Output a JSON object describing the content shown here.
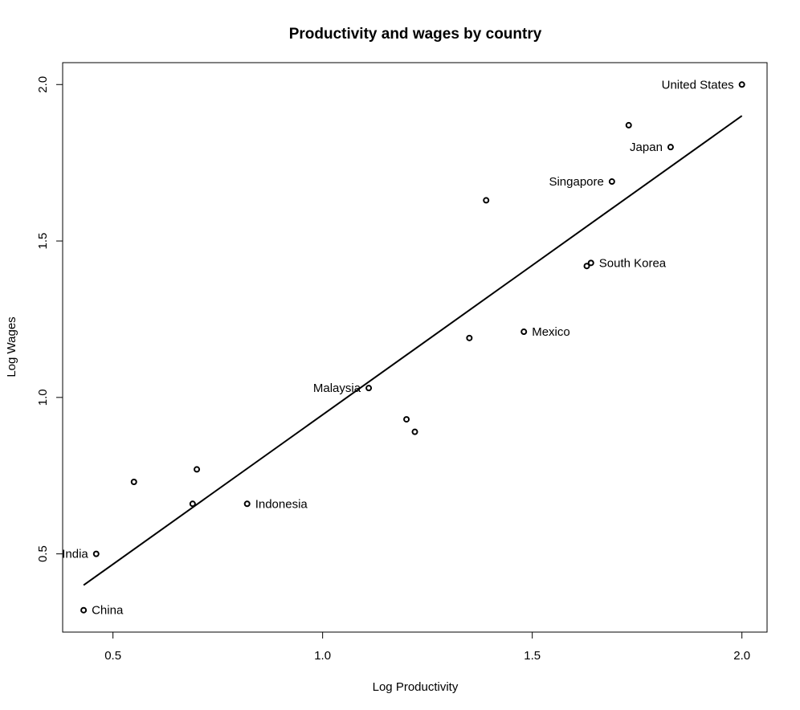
{
  "chart_data": {
    "type": "scatter",
    "title": "Productivity and wages by country",
    "xlabel": "Log Productivity",
    "ylabel": "Log Wages",
    "xlim": [
      0.38,
      2.06
    ],
    "ylim": [
      0.25,
      2.07
    ],
    "xticks": [
      "0.5",
      "1.0",
      "1.5",
      "2.0"
    ],
    "yticks": [
      "0.5",
      "1.0",
      "1.5",
      "2.0"
    ],
    "grid": false,
    "points": [
      {
        "x": 0.43,
        "y": 0.32,
        "label": "China",
        "label_side": "right"
      },
      {
        "x": 0.46,
        "y": 0.5,
        "label": "India",
        "label_side": "left"
      },
      {
        "x": 0.55,
        "y": 0.73,
        "label": "",
        "label_side": "right"
      },
      {
        "x": 0.69,
        "y": 0.66,
        "label": "",
        "label_side": "right"
      },
      {
        "x": 0.7,
        "y": 0.77,
        "label": "",
        "label_side": "right"
      },
      {
        "x": 0.82,
        "y": 0.66,
        "label": "Indonesia",
        "label_side": "right"
      },
      {
        "x": 1.11,
        "y": 1.03,
        "label": "Malaysia",
        "label_side": "left"
      },
      {
        "x": 1.2,
        "y": 0.93,
        "label": "",
        "label_side": "right"
      },
      {
        "x": 1.22,
        "y": 0.89,
        "label": "",
        "label_side": "right"
      },
      {
        "x": 1.35,
        "y": 1.19,
        "label": "",
        "label_side": "right"
      },
      {
        "x": 1.39,
        "y": 1.63,
        "label": "",
        "label_side": "right"
      },
      {
        "x": 1.48,
        "y": 1.21,
        "label": "Mexico",
        "label_side": "right"
      },
      {
        "x": 1.63,
        "y": 1.42,
        "label": "",
        "label_side": "right"
      },
      {
        "x": 1.64,
        "y": 1.43,
        "label": "South Korea",
        "label_side": "right"
      },
      {
        "x": 1.69,
        "y": 1.69,
        "label": "Singapore",
        "label_side": "left"
      },
      {
        "x": 1.73,
        "y": 1.87,
        "label": "",
        "label_side": "right"
      },
      {
        "x": 1.83,
        "y": 1.8,
        "label": "Japan",
        "label_side": "left"
      },
      {
        "x": 2.0,
        "y": 2.0,
        "label": "United States",
        "label_side": "left"
      }
    ],
    "fit_line": {
      "x": [
        0.43,
        2.0
      ],
      "y": [
        0.4,
        1.9
      ]
    }
  }
}
